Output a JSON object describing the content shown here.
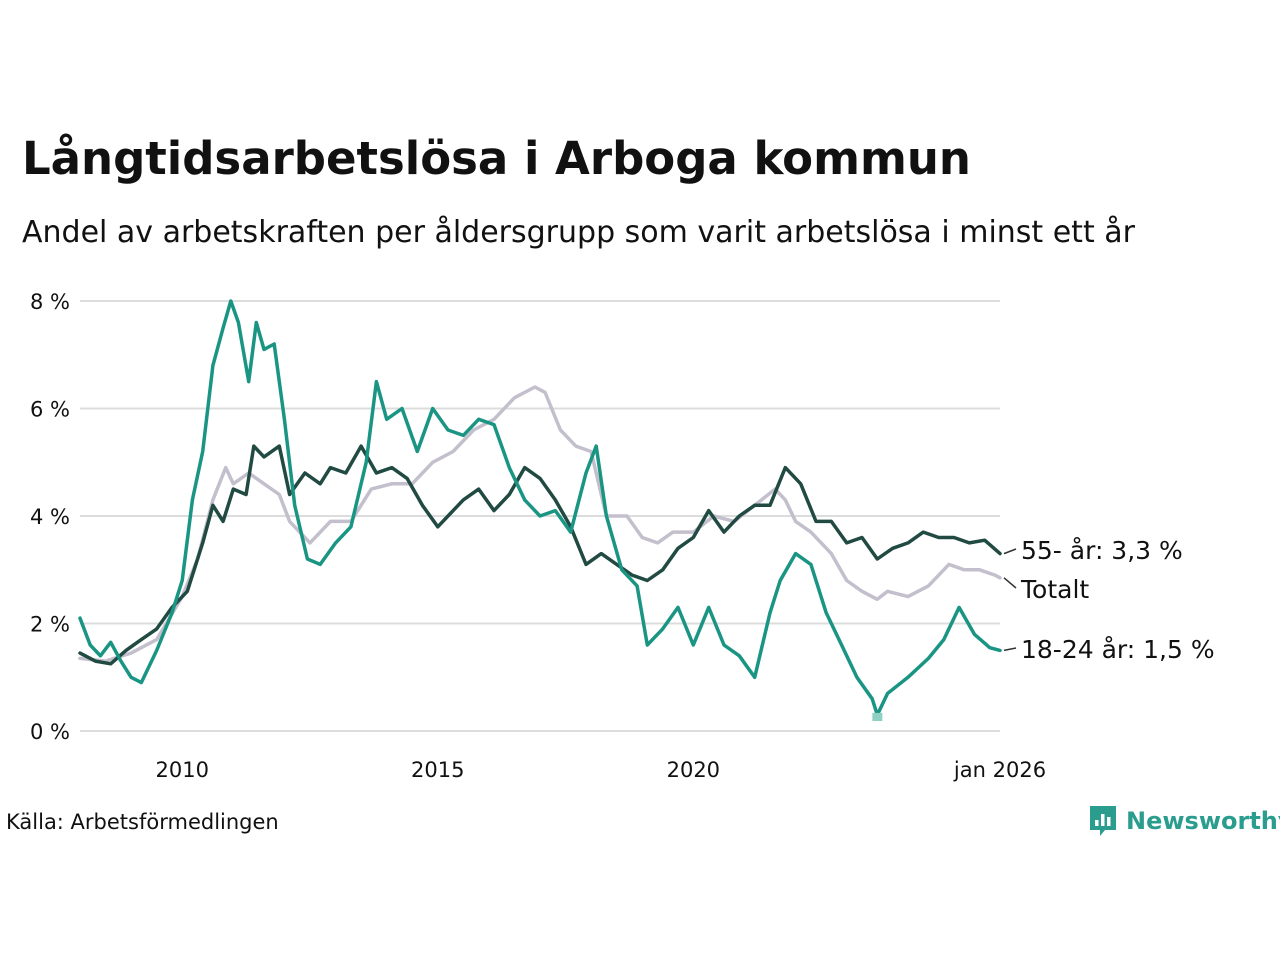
{
  "header": {
    "title": "Långtidsarbetslösa i Arboga kommun",
    "subtitle": "Andel av arbetskraften per åldersgrupp som varit arbetslösa i minst ett år"
  },
  "footer": {
    "source": "Källa: Arbetsförmedlingen",
    "brand": "Newsworthy"
  },
  "colors": {
    "total": "#c3bfcc",
    "older": "#214a42",
    "young": "#1a9583",
    "young_min": "#8fd0c4",
    "grid": "#dcdcdc"
  },
  "chart_data": {
    "type": "line",
    "title": "Långtidsarbetslösa i Arboga kommun",
    "subtitle": "Andel av arbetskraften per åldersgrupp som varit arbetslösa i minst ett år",
    "xlabel": "",
    "ylabel": "",
    "xlim": [
      2008.0,
      2026.0
    ],
    "ylim": [
      0,
      8
    ],
    "y_ticks": [
      0,
      2,
      4,
      6,
      8
    ],
    "y_tick_labels": [
      "0 %",
      "2 %",
      "4 %",
      "6 %",
      "8 %"
    ],
    "x_ticks": [
      2010,
      2015,
      2020,
      2026
    ],
    "x_tick_labels": [
      "2010",
      "2015",
      "2020",
      "jan 2026"
    ],
    "grid": true,
    "series": [
      {
        "name": "Totalt",
        "label": "Totalt",
        "color": "#c3bfcc",
        "points": [
          [
            2008.0,
            1.35
          ],
          [
            2008.5,
            1.3
          ],
          [
            2009.0,
            1.45
          ],
          [
            2009.5,
            1.7
          ],
          [
            2010.0,
            2.5
          ],
          [
            2010.3,
            3.2
          ],
          [
            2010.6,
            4.3
          ],
          [
            2010.85,
            4.9
          ],
          [
            2011.0,
            4.6
          ],
          [
            2011.3,
            4.8
          ],
          [
            2011.6,
            4.6
          ],
          [
            2011.9,
            4.4
          ],
          [
            2012.1,
            3.9
          ],
          [
            2012.5,
            3.5
          ],
          [
            2012.9,
            3.9
          ],
          [
            2013.3,
            3.9
          ],
          [
            2013.7,
            4.5
          ],
          [
            2014.1,
            4.6
          ],
          [
            2014.5,
            4.6
          ],
          [
            2014.9,
            5.0
          ],
          [
            2015.3,
            5.2
          ],
          [
            2015.7,
            5.6
          ],
          [
            2016.1,
            5.8
          ],
          [
            2016.5,
            6.2
          ],
          [
            2016.9,
            6.4
          ],
          [
            2017.1,
            6.3
          ],
          [
            2017.4,
            5.6
          ],
          [
            2017.7,
            5.3
          ],
          [
            2018.0,
            5.2
          ],
          [
            2018.3,
            4.0
          ],
          [
            2018.7,
            4.0
          ],
          [
            2019.0,
            3.6
          ],
          [
            2019.3,
            3.5
          ],
          [
            2019.6,
            3.7
          ],
          [
            2020.0,
            3.7
          ],
          [
            2020.4,
            4.0
          ],
          [
            2020.8,
            3.9
          ],
          [
            2021.2,
            4.2
          ],
          [
            2021.6,
            4.5
          ],
          [
            2021.8,
            4.3
          ],
          [
            2022.0,
            3.9
          ],
          [
            2022.3,
            3.7
          ],
          [
            2022.7,
            3.3
          ],
          [
            2023.0,
            2.8
          ],
          [
            2023.3,
            2.6
          ],
          [
            2023.6,
            2.45
          ],
          [
            2023.8,
            2.6
          ],
          [
            2024.2,
            2.5
          ],
          [
            2024.6,
            2.7
          ],
          [
            2025.0,
            3.1
          ],
          [
            2025.3,
            3.0
          ],
          [
            2025.6,
            3.0
          ],
          [
            2025.9,
            2.9
          ],
          [
            2026.0,
            2.85
          ]
        ]
      },
      {
        "name": "55- år",
        "label": "55- år: 3,3 %",
        "color": "#214a42",
        "last_value": 3.3,
        "points": [
          [
            2008.0,
            1.45
          ],
          [
            2008.3,
            1.3
          ],
          [
            2008.6,
            1.25
          ],
          [
            2008.9,
            1.5
          ],
          [
            2009.2,
            1.7
          ],
          [
            2009.5,
            1.9
          ],
          [
            2009.8,
            2.3
          ],
          [
            2010.1,
            2.6
          ],
          [
            2010.4,
            3.5
          ],
          [
            2010.6,
            4.2
          ],
          [
            2010.8,
            3.9
          ],
          [
            2011.0,
            4.5
          ],
          [
            2011.25,
            4.4
          ],
          [
            2011.4,
            5.3
          ],
          [
            2011.6,
            5.1
          ],
          [
            2011.9,
            5.3
          ],
          [
            2012.1,
            4.4
          ],
          [
            2012.4,
            4.8
          ],
          [
            2012.7,
            4.6
          ],
          [
            2012.9,
            4.9
          ],
          [
            2013.2,
            4.8
          ],
          [
            2013.5,
            5.3
          ],
          [
            2013.8,
            4.8
          ],
          [
            2014.1,
            4.9
          ],
          [
            2014.4,
            4.7
          ],
          [
            2014.7,
            4.2
          ],
          [
            2015.0,
            3.8
          ],
          [
            2015.2,
            4.0
          ],
          [
            2015.5,
            4.3
          ],
          [
            2015.8,
            4.5
          ],
          [
            2016.1,
            4.1
          ],
          [
            2016.4,
            4.4
          ],
          [
            2016.7,
            4.9
          ],
          [
            2017.0,
            4.7
          ],
          [
            2017.3,
            4.3
          ],
          [
            2017.6,
            3.8
          ],
          [
            2017.9,
            3.1
          ],
          [
            2018.2,
            3.3
          ],
          [
            2018.5,
            3.1
          ],
          [
            2018.8,
            2.9
          ],
          [
            2019.1,
            2.8
          ],
          [
            2019.4,
            3.0
          ],
          [
            2019.7,
            3.4
          ],
          [
            2020.0,
            3.6
          ],
          [
            2020.3,
            4.1
          ],
          [
            2020.6,
            3.7
          ],
          [
            2020.9,
            4.0
          ],
          [
            2021.2,
            4.2
          ],
          [
            2021.5,
            4.2
          ],
          [
            2021.8,
            4.9
          ],
          [
            2022.1,
            4.6
          ],
          [
            2022.4,
            3.9
          ],
          [
            2022.7,
            3.9
          ],
          [
            2023.0,
            3.5
          ],
          [
            2023.3,
            3.6
          ],
          [
            2023.6,
            3.2
          ],
          [
            2023.9,
            3.4
          ],
          [
            2024.2,
            3.5
          ],
          [
            2024.5,
            3.7
          ],
          [
            2024.8,
            3.6
          ],
          [
            2025.1,
            3.6
          ],
          [
            2025.4,
            3.5
          ],
          [
            2025.7,
            3.55
          ],
          [
            2026.0,
            3.3
          ]
        ]
      },
      {
        "name": "18-24 år",
        "label": "18-24 år: 1,5 %",
        "color": "#1a9583",
        "last_value": 1.5,
        "min_point": [
          2023.6,
          0.3
        ],
        "points": [
          [
            2008.0,
            2.1
          ],
          [
            2008.2,
            1.6
          ],
          [
            2008.4,
            1.4
          ],
          [
            2008.6,
            1.65
          ],
          [
            2008.8,
            1.3
          ],
          [
            2009.0,
            1.0
          ],
          [
            2009.2,
            0.9
          ],
          [
            2009.5,
            1.5
          ],
          [
            2009.8,
            2.2
          ],
          [
            2010.0,
            2.8
          ],
          [
            2010.2,
            4.3
          ],
          [
            2010.4,
            5.2
          ],
          [
            2010.6,
            6.8
          ],
          [
            2010.8,
            7.5
          ],
          [
            2010.95,
            8.0
          ],
          [
            2011.1,
            7.6
          ],
          [
            2011.3,
            6.5
          ],
          [
            2011.45,
            7.6
          ],
          [
            2011.6,
            7.1
          ],
          [
            2011.8,
            7.2
          ],
          [
            2012.0,
            5.8
          ],
          [
            2012.2,
            4.2
          ],
          [
            2012.45,
            3.2
          ],
          [
            2012.7,
            3.1
          ],
          [
            2013.0,
            3.5
          ],
          [
            2013.3,
            3.8
          ],
          [
            2013.6,
            5.0
          ],
          [
            2013.8,
            6.5
          ],
          [
            2014.0,
            5.8
          ],
          [
            2014.3,
            6.0
          ],
          [
            2014.6,
            5.2
          ],
          [
            2014.9,
            6.0
          ],
          [
            2015.2,
            5.6
          ],
          [
            2015.5,
            5.5
          ],
          [
            2015.8,
            5.8
          ],
          [
            2016.1,
            5.7
          ],
          [
            2016.4,
            4.9
          ],
          [
            2016.7,
            4.3
          ],
          [
            2017.0,
            4.0
          ],
          [
            2017.3,
            4.1
          ],
          [
            2017.6,
            3.7
          ],
          [
            2017.9,
            4.8
          ],
          [
            2018.1,
            5.3
          ],
          [
            2018.3,
            4.0
          ],
          [
            2018.6,
            3.0
          ],
          [
            2018.9,
            2.7
          ],
          [
            2019.1,
            1.6
          ],
          [
            2019.4,
            1.9
          ],
          [
            2019.7,
            2.3
          ],
          [
            2020.0,
            1.6
          ],
          [
            2020.3,
            2.3
          ],
          [
            2020.6,
            1.6
          ],
          [
            2020.9,
            1.4
          ],
          [
            2021.2,
            1.0
          ],
          [
            2021.5,
            2.2
          ],
          [
            2021.7,
            2.8
          ],
          [
            2022.0,
            3.3
          ],
          [
            2022.3,
            3.1
          ],
          [
            2022.6,
            2.2
          ],
          [
            2022.9,
            1.6
          ],
          [
            2023.2,
            1.0
          ],
          [
            2023.5,
            0.6
          ],
          [
            2023.6,
            0.3
          ],
          [
            2023.8,
            0.7
          ],
          [
            2024.2,
            1.0
          ],
          [
            2024.6,
            1.35
          ],
          [
            2024.9,
            1.7
          ],
          [
            2025.2,
            2.3
          ],
          [
            2025.5,
            1.8
          ],
          [
            2025.8,
            1.55
          ],
          [
            2026.0,
            1.5
          ]
        ]
      }
    ]
  }
}
